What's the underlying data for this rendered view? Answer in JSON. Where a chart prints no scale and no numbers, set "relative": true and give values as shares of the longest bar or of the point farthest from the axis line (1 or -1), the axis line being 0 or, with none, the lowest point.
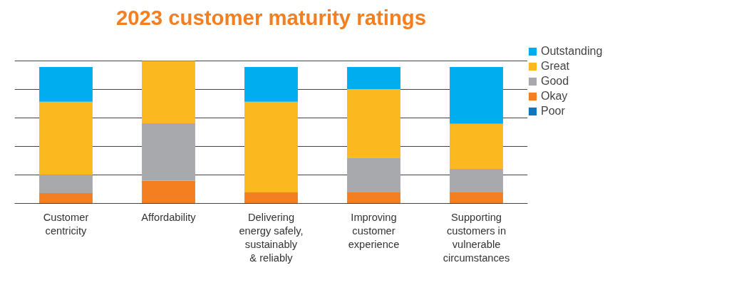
{
  "chart_data": {
    "type": "bar",
    "title": "2023 customer maturity ratings",
    "relative": true,
    "stacked": true,
    "grid": "y",
    "legend": "right",
    "categories": [
      "Customer\ncentricity",
      "Affordability",
      "Delivering\nenergy safely,\nsustainably\n& reliably",
      "Improving\ncustomer\nexperience",
      "Supporting\ncustomers in\nvulnerable\ncircumstances"
    ],
    "series": [
      {
        "name": "Poor",
        "color": "#0f75bc",
        "values": [
          0,
          0,
          0,
          0,
          0
        ]
      },
      {
        "name": "Okay",
        "color": "#f47f20",
        "values": [
          0.073,
          0.16,
          0.078,
          0.078,
          0.078
        ]
      },
      {
        "name": "Good",
        "color": "#a7a9ac",
        "values": [
          0.126,
          0.403,
          0,
          0.243,
          0.165
        ]
      },
      {
        "name": "Great",
        "color": "#fbb91f",
        "values": [
          0.515,
          0.437,
          0.636,
          0.481,
          0.316
        ]
      },
      {
        "name": "Outstanding",
        "color": "#00aeef",
        "values": [
          0.243,
          0,
          0.243,
          0.155,
          0.398
        ]
      }
    ]
  }
}
